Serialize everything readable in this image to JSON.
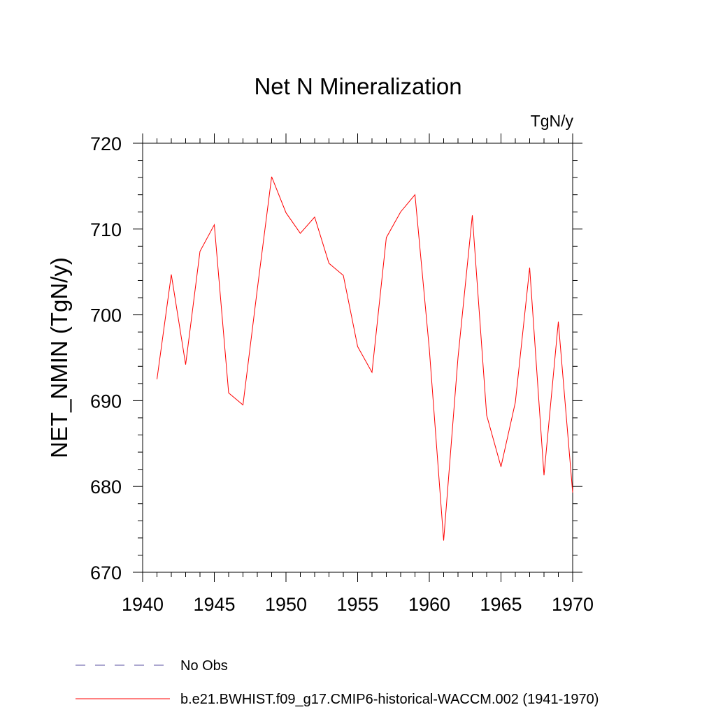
{
  "chart_data": {
    "type": "line",
    "title": "Net N Mineralization",
    "units_label": "TgN/y",
    "ylabel": "NET_NMIN  (TgN/y)",
    "xlabel": "",
    "xlim": [
      1940,
      1970
    ],
    "ylim": [
      670,
      720
    ],
    "x_ticks": [
      1940,
      1945,
      1950,
      1955,
      1960,
      1965,
      1970
    ],
    "y_ticks": [
      670,
      680,
      690,
      700,
      710,
      720
    ],
    "x_minor_step": 1,
    "y_minor_step": 2,
    "grid": false,
    "legend_position": "bottom",
    "series": [
      {
        "name": "b.e21.BWHIST.f09_g17.CMIP6-historical-WACCM.002 (1941-1970)",
        "color": "#ff0000",
        "style": "solid",
        "x": [
          1941,
          1942,
          1943,
          1944,
          1945,
          1946,
          1947,
          1948,
          1949,
          1950,
          1951,
          1952,
          1953,
          1954,
          1955,
          1956,
          1957,
          1958,
          1959,
          1960,
          1961,
          1962,
          1963,
          1964,
          1965,
          1966,
          1967,
          1968,
          1969,
          1970
        ],
        "values": [
          692.5,
          704.7,
          694.2,
          707.4,
          710.5,
          690.9,
          689.5,
          703.0,
          716.1,
          711.9,
          709.5,
          711.4,
          706.0,
          704.6,
          696.3,
          693.3,
          709.0,
          712.0,
          714.0,
          696.0,
          673.7,
          695.0,
          711.6,
          688.3,
          682.3,
          689.8,
          705.5,
          681.3,
          699.2,
          679.3
        ]
      }
    ],
    "legend": [
      {
        "label": "No Obs",
        "color": "#5a4fa0",
        "style": "dashed"
      },
      {
        "label": "b.e21.BWHIST.f09_g17.CMIP6-historical-WACCM.002 (1941-1970)",
        "color": "#ff0000",
        "style": "solid"
      }
    ]
  }
}
